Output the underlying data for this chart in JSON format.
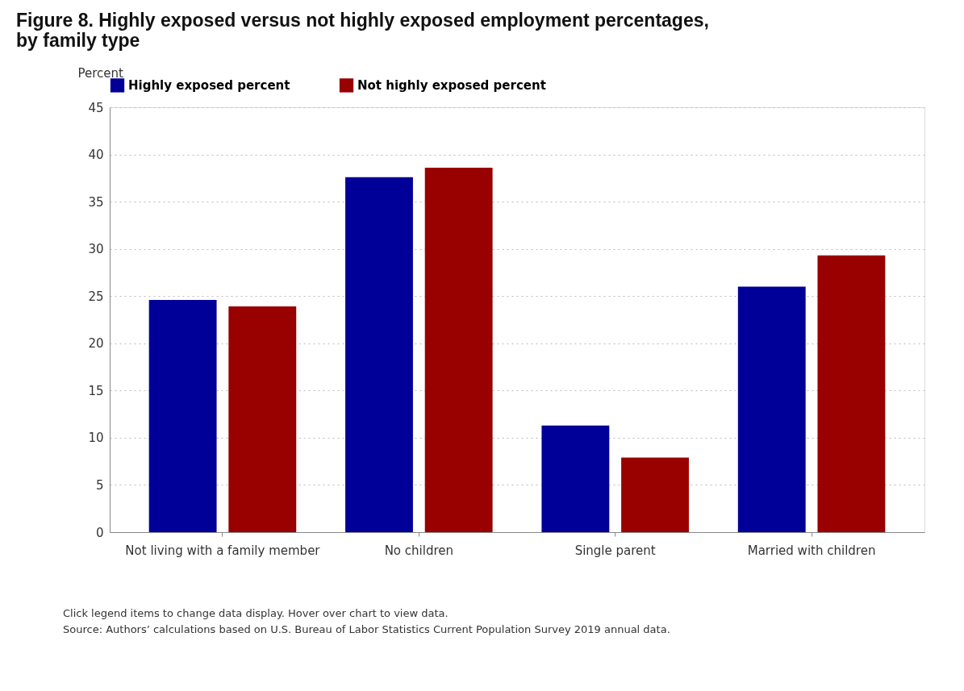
{
  "chart_data": {
    "type": "bar",
    "title": "Figure 8. Highly exposed versus not highly exposed employment percentages, by family type",
    "ylabel": "Percent",
    "categories": [
      "Not living with a family member",
      "No children",
      "Single parent",
      "Married with children"
    ],
    "series": [
      {
        "name": "Highly exposed percent",
        "color": "#000099",
        "values": [
          24.6,
          37.6,
          11.3,
          26.0
        ]
      },
      {
        "name": "Not highly exposed percent",
        "color": "#990000",
        "values": [
          23.9,
          38.6,
          7.9,
          29.3
        ]
      }
    ],
    "ylim": [
      0,
      45
    ],
    "yticks": [
      0,
      5,
      10,
      15,
      20,
      25,
      30,
      35,
      40,
      45
    ],
    "grid": "y",
    "legend": "top",
    "annotations": [
      "Click legend items to change data display. Hover over chart to view data.",
      "Source: Authors’ calculations based on U.S. Bureau of Labor Statistics Current Population Survey 2019 annual data."
    ]
  }
}
